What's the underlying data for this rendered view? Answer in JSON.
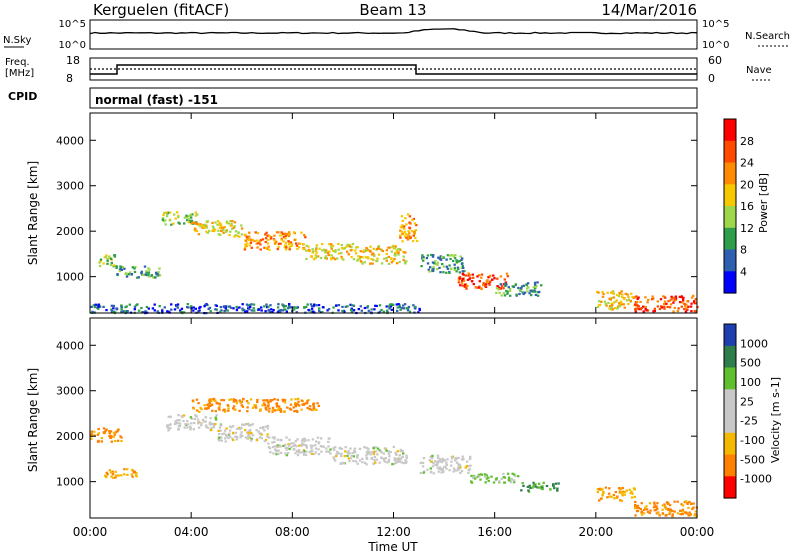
{
  "header": {
    "station": "Kerguelen (fitACF)",
    "beam": "Beam 13",
    "date": "14/Mar/2016"
  },
  "status_panels": {
    "nsky_label": "N.Sky",
    "nsky_ticks": [
      "10^5",
      "10^0"
    ],
    "nsearch_label": "N.Search",
    "nsearch_ticks": [
      "10^5",
      "10^0"
    ],
    "freq_label_1": "Freq.",
    "freq_label_2": "[MHz]",
    "freq_ticks": [
      "18",
      "8"
    ],
    "nave_label": "Nave",
    "nave_ticks": [
      "60",
      "0"
    ],
    "cpid_label": "CPID",
    "cpid_value": "normal (fast) -151"
  },
  "chart_data": [
    {
      "type": "heatmap",
      "quantity": "Power",
      "ylabel": "Slant Range [km]",
      "yticks": [
        "4000",
        "3000",
        "2000",
        "1000"
      ],
      "ylim": [
        200,
        4600
      ],
      "colorbar_label": "Power [dB]",
      "colorbar_ticks": [
        "28",
        "24",
        "20",
        "16",
        "12",
        "8",
        "4"
      ],
      "colorbar_colors": [
        "#ff0000",
        "#ff4a00",
        "#ff8c00",
        "#f5c800",
        "#9ed84a",
        "#2f9e4a",
        "#2e5fb0",
        "#0000ff"
      ],
      "bands": [
        {
          "x": [
            0.2,
            1.0
          ],
          "y": [
            1250,
            1500
          ],
          "level": 14
        },
        {
          "x": [
            1.0,
            2.8
          ],
          "y": [
            1000,
            1250
          ],
          "level": 10
        },
        {
          "x": [
            2.8,
            4.2
          ],
          "y": [
            2150,
            2450
          ],
          "level": 16
        },
        {
          "x": [
            4.0,
            6.0
          ],
          "y": [
            1900,
            2250
          ],
          "level": 18
        },
        {
          "x": [
            6.0,
            8.5
          ],
          "y": [
            1600,
            2000
          ],
          "level": 22
        },
        {
          "x": [
            8.5,
            10.5
          ],
          "y": [
            1400,
            1750
          ],
          "level": 18
        },
        {
          "x": [
            10.5,
            12.5
          ],
          "y": [
            1300,
            1700
          ],
          "level": 20
        },
        {
          "x": [
            12.2,
            12.9
          ],
          "y": [
            1800,
            2400
          ],
          "level": 24
        },
        {
          "x": [
            13.0,
            14.8
          ],
          "y": [
            1100,
            1500
          ],
          "level": 12
        },
        {
          "x": [
            14.5,
            16.5
          ],
          "y": [
            750,
            1100
          ],
          "level": 26
        },
        {
          "x": [
            16.0,
            17.8
          ],
          "y": [
            600,
            900
          ],
          "level": 12
        },
        {
          "x": [
            20.0,
            21.5
          ],
          "y": [
            300,
            700
          ],
          "level": 20
        },
        {
          "x": [
            21.5,
            24.0
          ],
          "y": [
            250,
            600
          ],
          "level": 28
        },
        {
          "x": [
            0.0,
            13.0
          ],
          "y": [
            220,
            420
          ],
          "level": 6
        }
      ]
    },
    {
      "type": "heatmap",
      "quantity": "Velocity",
      "ylabel": "Slant Range [km]",
      "yticks": [
        "4000",
        "3000",
        "2000",
        "1000"
      ],
      "ylim": [
        200,
        4600
      ],
      "xlabel": "Time UT",
      "xticks": [
        "00:00",
        "04:00",
        "08:00",
        "12:00",
        "16:00",
        "20:00",
        "00:00"
      ],
      "xlim": [
        0,
        24
      ],
      "colorbar_label": "Velocity [m s-1]",
      "colorbar_ticks": [
        "1000",
        "500",
        "100",
        "25",
        "-25",
        "-100",
        "-500",
        "-1000"
      ],
      "colorbar_colors": [
        "#1f3fb0",
        "#2e7d4a",
        "#5fbf2f",
        "#c8c8c8",
        "#c8c8c8",
        "#f5b800",
        "#ff8000",
        "#ff0000"
      ],
      "bands": [
        {
          "x": [
            0.0,
            1.2
          ],
          "y": [
            1900,
            2200
          ],
          "level": -500
        },
        {
          "x": [
            0.5,
            1.8
          ],
          "y": [
            1100,
            1300
          ],
          "level": -100
        },
        {
          "x": [
            3.0,
            5.0
          ],
          "y": [
            2150,
            2500
          ],
          "level": 0
        },
        {
          "x": [
            5.0,
            7.0
          ],
          "y": [
            1900,
            2300
          ],
          "level": 0
        },
        {
          "x": [
            7.0,
            9.5
          ],
          "y": [
            1600,
            2000
          ],
          "level": 0
        },
        {
          "x": [
            9.5,
            12.5
          ],
          "y": [
            1400,
            1800
          ],
          "level": 0
        },
        {
          "x": [
            4.0,
            9.0
          ],
          "y": [
            2550,
            2850
          ],
          "level": -500
        },
        {
          "x": [
            13.0,
            15.0
          ],
          "y": [
            1200,
            1600
          ],
          "level": 0
        },
        {
          "x": [
            15.0,
            17.0
          ],
          "y": [
            1000,
            1200
          ],
          "level": 100
        },
        {
          "x": [
            17.0,
            18.5
          ],
          "y": [
            800,
            1000
          ],
          "level": 500
        },
        {
          "x": [
            21.5,
            24.0
          ],
          "y": [
            250,
            600
          ],
          "level": -500
        },
        {
          "x": [
            20.0,
            21.5
          ],
          "y": [
            600,
            900
          ],
          "level": -100
        }
      ]
    }
  ]
}
